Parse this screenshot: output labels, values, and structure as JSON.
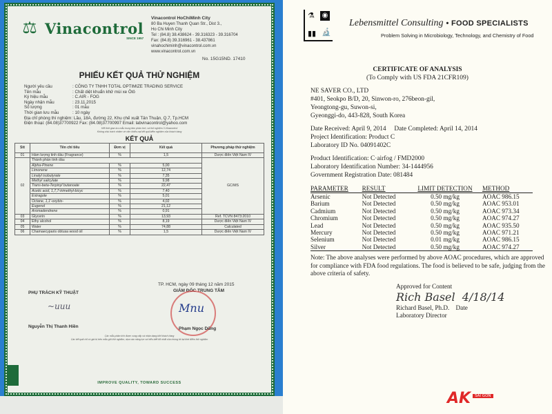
{
  "left_doc": {
    "brand": "Vinacontrol",
    "since": "SINCE 1957",
    "address": [
      "Vinacontrol HoChiMinh City",
      "80 Ba Huyen Thanh Quan Str., Dist 3.,",
      "Ho Chi Minh City",
      "Tel : (84.8) 38.438624 - 39.316323 - 39.316704",
      "Fax: (84.8) 39.316961 - 38.437861",
      "vinahochiminh@vinacontrol.com.vn",
      "www.vinacontrol.com.vn"
    ],
    "cert_no": "No. 15G15ND. 17410",
    "title": "PHIẾU KẾT QUẢ THỬ NGHIỆM",
    "info": [
      {
        "k": "Người yêu cầu",
        "v": ": CÔNG TY TNHH TOTAL OPTIMIZE TRADING SERVICE"
      },
      {
        "k": "Tên mẫu",
        "v": ": Chất diệt khuẩn khử mùi xe Ôtô"
      },
      {
        "k": "Ký hiệu mẫu",
        "v": ": C.AIR - FOG"
      },
      {
        "k": "Ngày nhận mẫu",
        "v": ": 23.11.2015"
      },
      {
        "k": "Số lượng",
        "v": ": 01 mẫu"
      },
      {
        "k": "Thời gian lưu mẫu",
        "v": ": 10 ngày"
      }
    ],
    "lab_address": "Địa chỉ phòng thí nghiệm: Lầu, 18A, đường 22, Khu chế xuất Tân Thuận, Q.7, Tp.HCM",
    "lab_phone": "Điện thoại: (84.08)37700922  Fax: (84.08)37700997  Email: labvinacontrol@yahoo.com",
    "fine_print_1": "Hết thời gian lưu mẫu trung tâm phân tích, và thử nghiệm 3-Vinacontrol",
    "fine_print_2": "Không chịu trách nhiệm về việc khiếu nại kết quả kiểm nghiệm của khách hàng",
    "results_heading": "KẾT QUẢ",
    "table_headers": [
      "Stt",
      "Tên chỉ tiêu",
      "Đơn vị",
      "Kết quả",
      "Phương pháp thử nghiệm"
    ],
    "row01": {
      "stt": "01",
      "name": "Hàm lượng tinh dầu (Fragrance)",
      "unit": "%",
      "result": "1,5",
      "method": "Dược điển Việt Nam IV"
    },
    "row02": {
      "stt": "02",
      "name": "Thành phần tinh dầu",
      "method": "GC/MS",
      "items": [
        {
          "name": "Alpha-Pinene",
          "unit": "%",
          "result": "5,00"
        },
        {
          "name": "Limonene",
          "unit": "%",
          "result": "12,74"
        },
        {
          "name": "Linalyl isobutyrate",
          "unit": "%",
          "result": "7,35"
        },
        {
          "name": "Methyl salicylate",
          "unit": "%",
          "result": "9,98"
        },
        {
          "name": "Trans-beta-Terpinyl butanoate",
          "unit": "%",
          "result": "22,47"
        },
        {
          "name": "Acetic acid, 1,7,7-trimethyl-bicyc",
          "unit": "%",
          "result": "7,40"
        },
        {
          "name": "Estragole",
          "unit": "%",
          "result": "5,01"
        },
        {
          "name": "Octane, 1,1'-oxybis-",
          "unit": "%",
          "result": "4,02"
        },
        {
          "name": "Eugenol",
          "unit": "%",
          "result": "21,12"
        },
        {
          "name": "Aromadendrene",
          "unit": "%",
          "result": "0,91"
        }
      ]
    },
    "rows_other": [
      {
        "stt": "03",
        "name": "Glycerin",
        "unit": "%",
        "result": "13,93",
        "method": "Ref. TCVN 8473:2010"
      },
      {
        "stt": "04",
        "name": "Ethy alcohol",
        "unit": "%",
        "result": "8,19",
        "method": "Dược điển Việt Nam IV"
      },
      {
        "stt": "05",
        "name": "Water",
        "unit": "%",
        "result": "74,88",
        "method": "Calculated"
      },
      {
        "stt": "06",
        "name": "Chamaecyparis obtusa wood oil",
        "unit": "%",
        "result": "1,5",
        "method": "Dược điển Việt Nam IV"
      }
    ],
    "date_line": "TP. HCM, ngày 09 tháng 12 năm 2015",
    "tech_title": "PHỤ TRÁCH KỸ THUẬT",
    "director_title": "GIÁM ĐỐC TRUNG TÂM",
    "tech_name": "Nguyễn Thị Thanh Hiền",
    "director_name": "Phạm Ngọc Dũng",
    "footer_1": "Các mẫu phân tích được cung cấp và nhận dạng bởi khách hàng",
    "footer_2": "Các kết quả chỉ có giá trị trên mẫu gửi thử nghiệm, dựa vào năng lực và hiểu biết tốt nhất của chúng tôi tại thời điểm thử nghiệm",
    "motto": "IMPROVE QUALITY, TOWARD SUCCESS",
    "accent": "#1e6b3a"
  },
  "right_doc": {
    "company": "Lebensmittel Consulting",
    "tagline": "• FOOD SPECIALISTS",
    "subtitle": "Problem Solving in Microbiology, Technology, and Chemistry of Food",
    "title": "CERTIFICATE OF ANALYSIS",
    "title_sub": "(To Comply with US FDA 21CFR109)",
    "client": [
      "NE SAVER CO., LTD",
      "#401, Seokpo B/D, 20, Sinwon-ro, 276beon-gil,",
      "Yeongtong-gu, Suwon-si,",
      "Gyeonggi-do, 443-828, South Korea"
    ],
    "date_received": "Date Received: April 9, 2014",
    "date_completed": "Date Completed: April 14, 2014",
    "project": "Project Identification: Product C",
    "lab_id": "Laboratory ID No. 04091402C",
    "product": "Product Identification: C·airfog / FMD2000",
    "lab_number": "Laboratory Identification Number: 34-1444956",
    "gov_reg": "Government Registration Date: 081484",
    "headers": [
      "PARAMETER",
      "RESULT",
      "LIMIT DETECTION",
      "METHOD"
    ],
    "rows": [
      [
        "Arsenic",
        "Not Detected",
        "0.50 mg/kg",
        "AOAC 986.15"
      ],
      [
        "Barium",
        "Not Detected",
        "0.50 mg/kg",
        "AOAC 953.01"
      ],
      [
        "Cadmium",
        "Not Detected",
        "0.50 mg/kg",
        "AOAC 973.34"
      ],
      [
        "Chromium",
        "Not Detected",
        "0.50 mg/kg",
        "AOAC 974.27"
      ],
      [
        "Lead",
        "Not Detected",
        "0.50 mg/kg",
        "AOAC 935.50"
      ],
      [
        "Mercury",
        "Not Detected",
        "0.50 mg/kg",
        "AOAC 971.21"
      ],
      [
        "Selenium",
        "Not Detected",
        "0.01 mg/kg",
        "AOAC 986.15"
      ],
      [
        "Silver",
        "Not Detected",
        "0.50 mg/kg",
        "AOAC 974.27"
      ]
    ],
    "note": "Note: The above analyses were performed by above AOAC procedures, which are approved for compliance with FDA food regulations. The food is believed to be safe, judging from the above criteria of safety.",
    "approved": "Approved for Content",
    "signature_date": "4/18/14",
    "signer": "Richard Basel, Ph.D.",
    "date_label": "Date",
    "signer_title": "Laboratory Director"
  },
  "watermark": {
    "mark": "AK",
    "text": "SAI GON",
    "color": "#e02828"
  }
}
